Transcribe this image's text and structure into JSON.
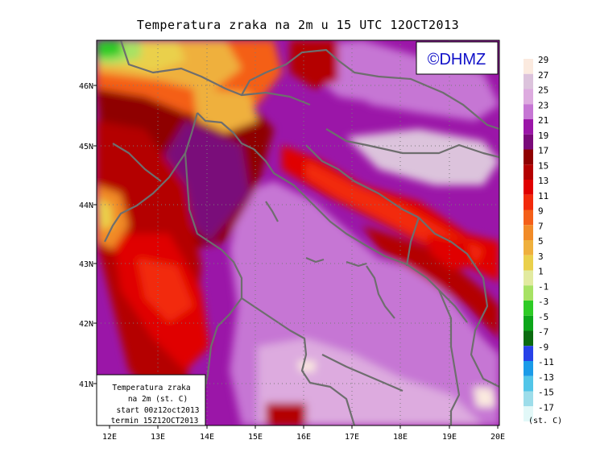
{
  "title": "Temperatura zraka na 2m u 15 UTC 12OCT2013",
  "logo": "©DHMZ",
  "info_box": {
    "line1": "Temperatura zraka",
    "line2": "na 2m (st. C)",
    "line3": "start 00z12oct2013",
    "line4": "termin 15Z12OCT2013"
  },
  "lat_labels": [
    "46N",
    "45N",
    "44N",
    "43N",
    "42N",
    "41N"
  ],
  "lon_labels": [
    "12E",
    "13E",
    "14E",
    "15E",
    "16E",
    "17E",
    "18E",
    "19E",
    "20E"
  ],
  "legend": {
    "unit": "(st. C)",
    "labels": [
      "29",
      "27",
      "25",
      "23",
      "21",
      "19",
      "17",
      "15",
      "13",
      "11",
      "9",
      "7",
      "5",
      "3",
      "1",
      "-1",
      "-3",
      "-5",
      "-7",
      "-9",
      "-11",
      "-13",
      "-15",
      "-17"
    ],
    "colors": [
      "#fbeadf",
      "#dcc3dc",
      "#ddabdf",
      "#c676d4",
      "#9b16a8",
      "#7a0a7a",
      "#8f0000",
      "#b40000",
      "#e00000",
      "#f22a0c",
      "#f45f19",
      "#f18b28",
      "#efb03d",
      "#ead04b",
      "#e2eaa0",
      "#a7e264",
      "#2ecb25",
      "#0da61a",
      "#0b6b10",
      "#2742e8",
      "#1b9be8",
      "#52c5e8",
      "#9dddea",
      "#e2f8f8"
    ]
  }
}
